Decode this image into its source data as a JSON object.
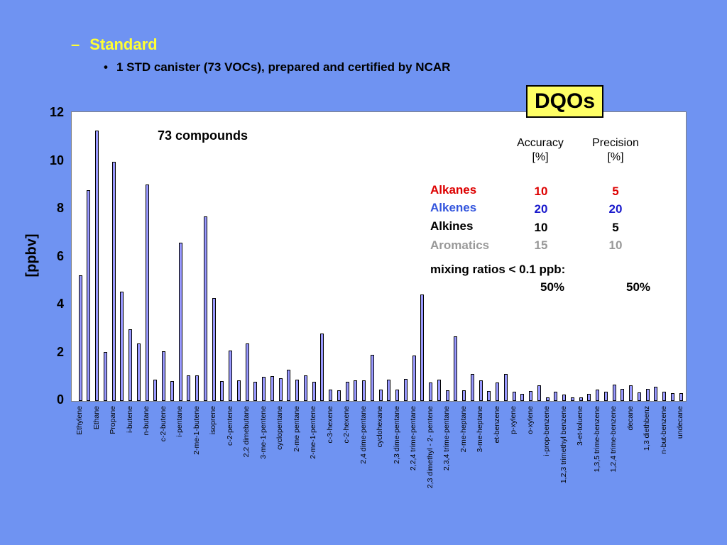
{
  "slide": {
    "bullet_main": "Standard",
    "bullet_main_marker": "–",
    "bullet_sub": "1 STD canister (73 VOCs), prepared and certified by NCAR",
    "bullet_sub_marker": "•"
  },
  "dqo": {
    "title": "DQOs",
    "col_accuracy": "Accuracy",
    "col_accuracy_unit": "[%]",
    "col_precision": "Precision",
    "col_precision_unit": "[%]",
    "rows": [
      {
        "label": "Alkanes",
        "accuracy": "10",
        "precision": "5",
        "color": "#dd0000",
        "val_color": "#dd0000"
      },
      {
        "label": "Alkenes",
        "accuracy": "20",
        "precision": "20",
        "color": "#3355dd",
        "val_color": "#1a1acc"
      },
      {
        "label": "Alkines",
        "accuracy": "10",
        "precision": "5",
        "color": "#000000",
        "val_color": "#000000"
      },
      {
        "label": "Aromatics",
        "accuracy": "15",
        "precision": "10",
        "color": "#999999",
        "val_color": "#999999"
      }
    ],
    "mixing_label": "mixing ratios < 0.1 ppb:",
    "mixing_accuracy": "50%",
    "mixing_precision": "50%"
  },
  "chart_data": {
    "type": "bar",
    "ylabel": "[ppbv]",
    "ylim": [
      0,
      12
    ],
    "yticks": [
      "0",
      "2",
      "4",
      "6",
      "8",
      "10",
      "12"
    ],
    "annotation": "73 compounds",
    "bar_color": "#9999ff",
    "categories": [
      "Ethylene",
      "",
      "Ethane",
      "",
      "Propane",
      "",
      "i-butene",
      "",
      "n-butane",
      "",
      "c-2-butene",
      "",
      "i-pentane",
      "",
      "2-me-1-butene",
      "",
      "isoprene",
      "",
      "c-2-pentene",
      "",
      "2,2 dimebutane",
      "",
      "3-me-1-pentene",
      "",
      "cyclopentane",
      "",
      "2-me pentane",
      "",
      "2-me-1-pentene",
      "",
      "c-3-hexene",
      "",
      "c-2-hexene",
      "",
      "2,4 dime-pentane",
      "",
      "cyclohexane",
      "",
      "2,3 dime-pentane",
      "",
      "2,2,4 trime-pentane",
      "",
      "2,3 dimethyl - 2- pentene",
      "",
      "2,3,4 trime-pentane",
      "",
      "2-me-heptane",
      "",
      "3-me-heptane",
      "",
      "et-benzene",
      "",
      "p-xylene",
      "",
      "o-xylene",
      "",
      "i-prop-benzene",
      "",
      "1,2,3 trimethyl benzene",
      "",
      "3-et-toluene",
      "",
      "1,3,5 trime-benzene",
      "",
      "1,2,4 trime-benzene",
      "",
      "decane",
      "",
      "1,3 diethbenz",
      "",
      "n-but-benzene",
      "",
      "undecane"
    ],
    "values": [
      5.25,
      8.8,
      11.3,
      2.05,
      10.0,
      4.55,
      3.0,
      2.4,
      9.05,
      0.9,
      2.08,
      0.82,
      6.6,
      1.08,
      1.08,
      7.7,
      4.3,
      0.82,
      2.1,
      0.85,
      2.4,
      0.8,
      1.02,
      1.03,
      0.95,
      1.3,
      0.88,
      1.08,
      0.8,
      2.82,
      0.46,
      0.45,
      0.8,
      0.87,
      0.87,
      1.92,
      0.48,
      0.88,
      0.46,
      0.92,
      1.9,
      4.45,
      0.78,
      0.9,
      0.43,
      2.7,
      0.44,
      1.14,
      0.87,
      0.42,
      0.78,
      1.14,
      0.38,
      0.3,
      0.42,
      0.65,
      0.15,
      0.38,
      0.28,
      0.14,
      0.16,
      0.3,
      0.48,
      0.38,
      0.68,
      0.5,
      0.65,
      0.36,
      0.5,
      0.6,
      0.38,
      0.33,
      0.32
    ]
  }
}
